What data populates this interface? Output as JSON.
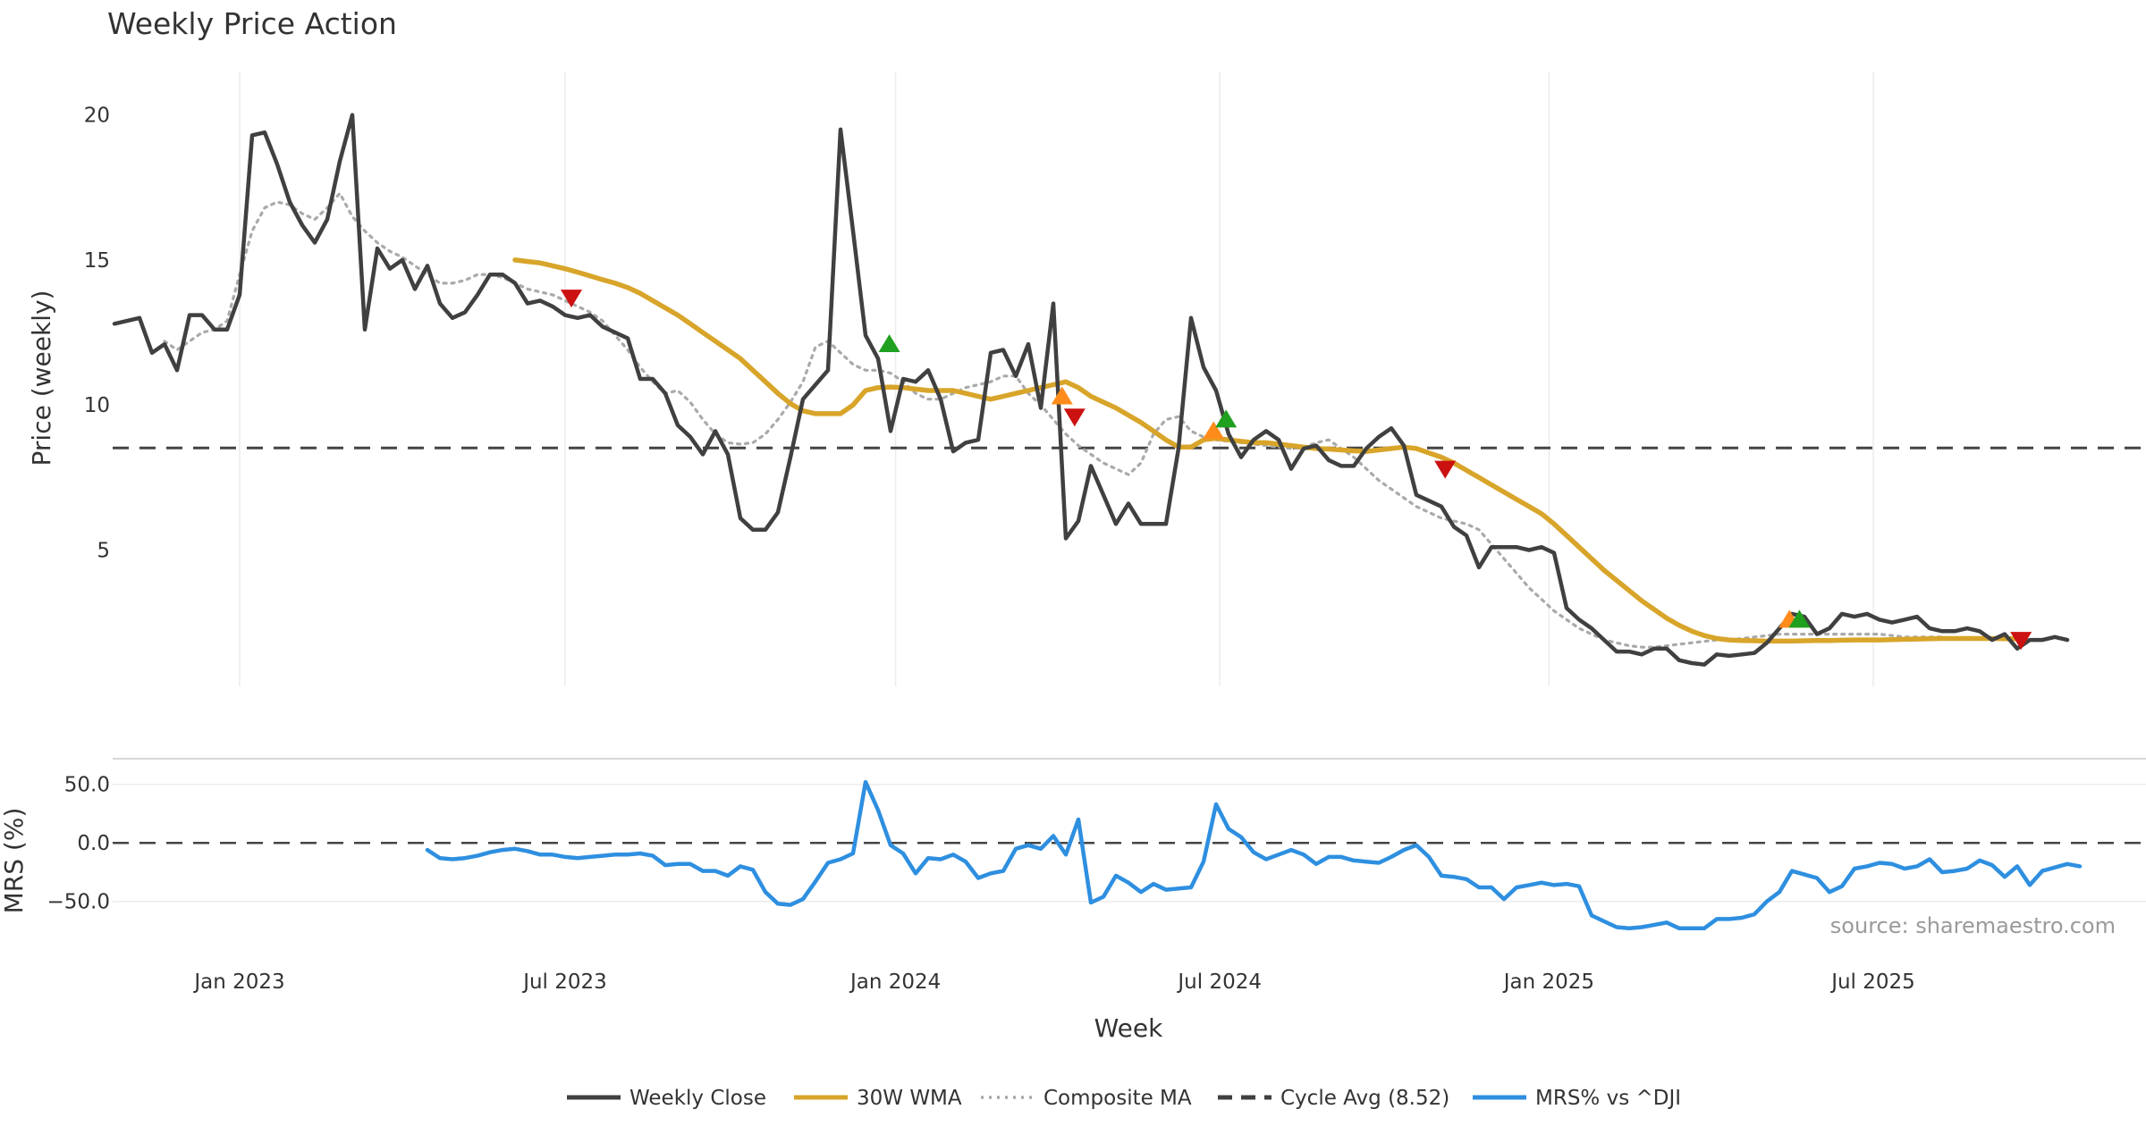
{
  "chart_data": {
    "type": "line",
    "title": "Weekly Price Action",
    "xlabel": "Week",
    "source": "source: sharemaestro.com",
    "x_ticks": [
      {
        "label": "Jan 2023",
        "week": 10
      },
      {
        "label": "Jul 2023",
        "week": 36
      },
      {
        "label": "Jan 2024",
        "week": 62.4
      },
      {
        "label": "Jul 2024",
        "week": 88.3
      },
      {
        "label": "Jan 2025",
        "week": 114.6
      },
      {
        "label": "Jul 2025",
        "week": 140.5
      }
    ],
    "price_panel": {
      "ylabel": "Price (weekly)",
      "yticks": [
        "5",
        "10",
        "15",
        "20"
      ],
      "ylim": [
        0.3,
        21.5
      ],
      "cycle_avg": 8.52,
      "weekly_close": [
        12.8,
        12.9,
        13.0,
        11.8,
        12.1,
        11.2,
        13.1,
        13.1,
        12.6,
        12.6,
        13.8,
        19.3,
        19.4,
        18.3,
        17.0,
        16.2,
        15.6,
        16.4,
        18.4,
        20.0,
        12.6,
        15.4,
        14.7,
        15.0,
        14.0,
        14.8,
        13.5,
        13.0,
        13.2,
        13.8,
        14.5,
        14.5,
        14.2,
        13.5,
        13.6,
        13.4,
        13.1,
        13.0,
        13.1,
        12.7,
        12.5,
        12.3,
        10.9,
        10.9,
        10.4,
        9.3,
        8.9,
        8.3,
        9.1,
        8.3,
        6.1,
        5.7,
        5.7,
        6.3,
        8.2,
        10.2,
        10.7,
        11.2,
        19.5,
        16.0,
        12.4,
        11.6,
        9.1,
        10.9,
        10.8,
        11.2,
        10.2,
        8.4,
        8.7,
        8.8,
        11.8,
        11.9,
        11.0,
        12.1,
        9.9,
        13.5,
        5.4,
        6.0,
        7.9,
        6.9,
        5.9,
        6.6,
        5.9,
        5.9,
        5.9,
        8.5,
        13.0,
        11.3,
        10.5,
        9.0,
        8.2,
        8.8,
        9.1,
        8.8,
        7.8,
        8.5,
        8.6,
        8.1,
        7.9,
        7.9,
        8.5,
        8.9,
        9.2,
        8.6,
        6.9,
        6.7,
        6.5,
        5.8,
        5.5,
        4.4,
        5.1,
        5.1,
        5.1,
        5.0,
        5.1,
        4.9,
        3.0,
        2.6,
        2.3,
        1.9,
        1.5,
        1.5,
        1.4,
        1.6,
        1.6,
        1.2,
        1.1,
        1.05,
        1.4,
        1.35,
        1.4,
        1.45,
        1.8,
        2.3,
        2.8,
        2.7,
        2.1,
        2.3,
        2.8,
        2.7,
        2.8,
        2.6,
        2.5,
        2.6,
        2.7,
        2.3,
        2.2,
        2.2,
        2.3,
        2.2,
        1.9,
        2.1,
        1.6,
        1.9,
        1.9,
        2.0,
        1.9
      ],
      "wma_30w": {
        "start_index": 32,
        "values": [
          15.0,
          14.95,
          14.9,
          14.8,
          14.7,
          14.58,
          14.45,
          14.32,
          14.2,
          14.05,
          13.85,
          13.6,
          13.35,
          13.1,
          12.8,
          12.5,
          12.2,
          11.9,
          11.6,
          11.2,
          10.8,
          10.4,
          10.05,
          9.8,
          9.7,
          9.7,
          9.7,
          10.0,
          10.5,
          10.6,
          10.62,
          10.6,
          10.55,
          10.5,
          10.5,
          10.5,
          10.4,
          10.3,
          10.2,
          10.3,
          10.4,
          10.5,
          10.6,
          10.7,
          10.8,
          10.6,
          10.3,
          10.1,
          9.9,
          9.65,
          9.4,
          9.1,
          8.8,
          8.55,
          8.55,
          8.8,
          8.85,
          8.8,
          8.75,
          8.7,
          8.7,
          8.65,
          8.6,
          8.55,
          8.5,
          8.48,
          8.45,
          8.42,
          8.4,
          8.45,
          8.5,
          8.55,
          8.5,
          8.35,
          8.2,
          8.0,
          7.75,
          7.5,
          7.25,
          7.0,
          6.75,
          6.5,
          6.25,
          5.9,
          5.5,
          5.1,
          4.7,
          4.3,
          3.95,
          3.6,
          3.25,
          2.95,
          2.65,
          2.4,
          2.2,
          2.05,
          1.95,
          1.9,
          1.88,
          1.87,
          1.86,
          1.86,
          1.86,
          1.87,
          1.88,
          1.88,
          1.89,
          1.9,
          1.9,
          1.9,
          1.91,
          1.92,
          1.93,
          1.94,
          1.95,
          1.95,
          1.95,
          1.95,
          1.95,
          1.94,
          1.94
        ]
      },
      "composite_ma": {
        "start_index": 4,
        "values": [
          12.2,
          11.9,
          12.2,
          12.5,
          12.6,
          12.9,
          14.5,
          16.0,
          16.8,
          17.0,
          16.9,
          16.6,
          16.4,
          16.8,
          17.3,
          16.5,
          16.0,
          15.6,
          15.3,
          15.1,
          14.8,
          14.5,
          14.2,
          14.2,
          14.3,
          14.5,
          14.5,
          14.4,
          14.2,
          14.0,
          13.9,
          13.8,
          13.6,
          13.4,
          13.2,
          12.9,
          12.4,
          11.9,
          11.3,
          10.8,
          10.4,
          10.5,
          10.1,
          9.5,
          9.0,
          8.7,
          8.65,
          8.7,
          9.0,
          9.5,
          10.1,
          10.8,
          12.0,
          12.2,
          11.8,
          11.4,
          11.2,
          11.2,
          11.1,
          10.8,
          10.4,
          10.2,
          10.2,
          10.4,
          10.6,
          10.7,
          10.8,
          11.0,
          11.0,
          10.4,
          10.0,
          9.5,
          9.0,
          8.6,
          8.3,
          8.0,
          7.8,
          7.6,
          8.0,
          9.0,
          9.5,
          9.6,
          9.1,
          8.9,
          8.8,
          8.75,
          8.7,
          8.65,
          8.6,
          8.55,
          8.5,
          8.55,
          8.7,
          8.8,
          8.5,
          8.2,
          7.8,
          7.4,
          7.1,
          6.8,
          6.5,
          6.3,
          6.1,
          6.0,
          5.9,
          5.7,
          5.2,
          4.7,
          4.2,
          3.7,
          3.3,
          2.9,
          2.6,
          2.3,
          2.1,
          1.9,
          1.8,
          1.7,
          1.65,
          1.65,
          1.7,
          1.75,
          1.8,
          1.85,
          1.9,
          1.9,
          1.95,
          2.0,
          2.05,
          2.1,
          2.1,
          2.1,
          2.1,
          2.1,
          2.1,
          2.1,
          2.1,
          2.1,
          2.05,
          2.0,
          2.0,
          2.0,
          2.0,
          1.95
        ]
      },
      "signals": [
        {
          "week": 36.5,
          "price": 13.7,
          "type": "sell",
          "color": "#cc1111"
        },
        {
          "week": 61.9,
          "price": 12.1,
          "type": "buy",
          "color": "#1fa01f"
        },
        {
          "week": 75.7,
          "price": 10.3,
          "type": "buy",
          "color": "#ff8c1a"
        },
        {
          "week": 76.7,
          "price": 9.6,
          "type": "sell",
          "color": "#cc1111"
        },
        {
          "week": 87.8,
          "price": 9.1,
          "type": "buy",
          "color": "#ff8c1a"
        },
        {
          "week": 88.8,
          "price": 9.5,
          "type": "buy",
          "color": "#1fa01f"
        },
        {
          "week": 106.3,
          "price": 7.8,
          "type": "sell",
          "color": "#cc1111"
        },
        {
          "week": 133.8,
          "price": 2.6,
          "type": "buy",
          "color": "#ff8c1a"
        },
        {
          "week": 134.6,
          "price": 2.6,
          "type": "buy",
          "color": "#1fa01f"
        },
        {
          "week": 152.3,
          "price": 1.9,
          "type": "sell",
          "color": "#cc1111"
        }
      ]
    },
    "mrs_panel": {
      "ylabel": "MRS (%)",
      "yticks": [
        "50.0",
        "0.0",
        "−50.0"
      ],
      "ylim": [
        -80,
        62
      ],
      "zero_line": 0,
      "start_index": 25,
      "values": [
        -6,
        -13,
        -14,
        -13,
        -11,
        -8,
        -6,
        -5,
        -7,
        -10,
        -10,
        -12,
        -13,
        -12,
        -11,
        -10,
        -10,
        -9,
        -11,
        -19,
        -18,
        -18,
        -24,
        -24,
        -28,
        -20,
        -23,
        -42,
        -52,
        -53,
        -48,
        -33,
        -17,
        -14,
        -9,
        52,
        28,
        -2,
        -9,
        -26,
        -13,
        -14,
        -10,
        -16,
        -30,
        -26,
        -24,
        -5,
        -2,
        -5,
        6,
        -10,
        20,
        -51,
        -46,
        -28,
        -34,
        -42,
        -35,
        -40,
        -39,
        -38,
        -16,
        33,
        12,
        5,
        -8,
        -14,
        -10,
        -6,
        -10,
        -18,
        -12,
        -12,
        -15,
        -16,
        -17,
        -12,
        -6,
        -2,
        -12,
        -28,
        -29,
        -31,
        -38,
        -38,
        -48,
        -38,
        -36,
        -34,
        -36,
        -35,
        -37,
        -62,
        -67,
        -72,
        -73,
        -72,
        -70,
        -68,
        -73,
        -73,
        -73,
        -65,
        -65,
        -64,
        -61,
        -50,
        -42,
        -24,
        -27,
        -30,
        -42,
        -37,
        -22,
        -20,
        -17,
        -18,
        -22,
        -20,
        -14,
        -25,
        -24,
        -22,
        -15,
        -19,
        -29,
        -20,
        -36,
        -24,
        -21,
        -18,
        -20
      ]
    },
    "legend": [
      {
        "label": "Weekly Close",
        "color": "#404040",
        "style": "solid"
      },
      {
        "label": "30W WMA",
        "color": "#d8a52a",
        "style": "solid"
      },
      {
        "label": "Composite MA",
        "color": "#a8a8a8",
        "style": "dotted"
      },
      {
        "label": "Cycle Avg (8.52)",
        "color": "#404040",
        "style": "dashed"
      },
      {
        "label": "MRS% vs ^DJI",
        "color": "#2e8fe0",
        "style": "solid"
      }
    ]
  }
}
